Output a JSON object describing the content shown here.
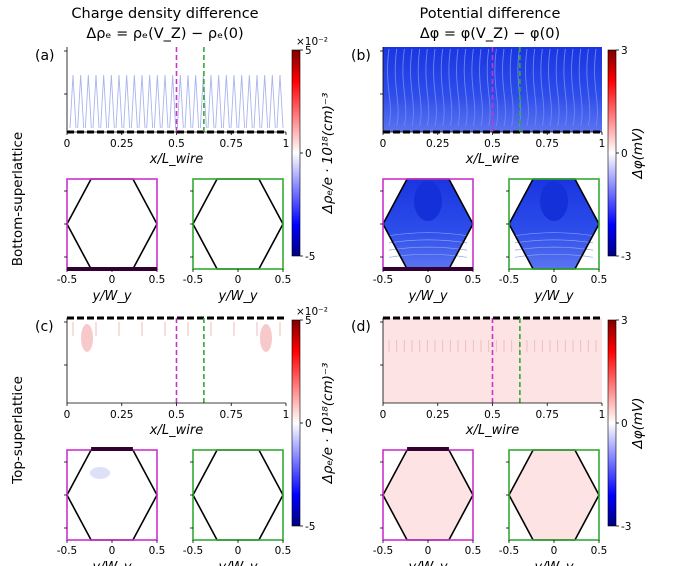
{
  "columns": [
    {
      "title1": "Charge density difference",
      "title2": "Δρₑ = ρₑ(V_Z) − ρₑ(0)"
    },
    {
      "title1": "Potential difference",
      "title2": "Δφ = φ(V_Z) − φ(0)"
    }
  ],
  "rows": [
    "Bottom-superlattice",
    "Top-superlattice"
  ],
  "panels": [
    {
      "label": "(a)",
      "row": 0,
      "col": 0,
      "superlattice": "bottom",
      "field": "charge",
      "mid_fill": "#ffffff",
      "hex_fill": [
        "#ffffff",
        "#ffffff"
      ],
      "blob": false
    },
    {
      "label": "(b)",
      "row": 0,
      "col": 1,
      "superlattice": "bottom",
      "field": "potential",
      "mid_fill": "#2646e6",
      "hex_fill": [
        "#2a4bea",
        "#2a4bea"
      ],
      "blob": true
    },
    {
      "label": "(c)",
      "row": 1,
      "col": 0,
      "superlattice": "top",
      "field": "charge",
      "mid_fill": "#ffffff",
      "hex_fill": [
        "#ffffff",
        "#ffffff"
      ],
      "blob": true
    },
    {
      "label": "(d)",
      "row": 1,
      "col": 1,
      "superlattice": "top",
      "field": "potential",
      "mid_fill": "#fde3e3",
      "hex_fill": [
        "#fde3e3",
        "#fde3e3"
      ],
      "blob": false
    }
  ],
  "chart_data": {
    "type": "heatmap",
    "wire_axis": {
      "label": "x/L_wire",
      "ticks": [
        0,
        0.25,
        0.5,
        0.75,
        1
      ],
      "tick_labels": [
        "0",
        "0.25",
        "0.5",
        "0.75",
        "1"
      ]
    },
    "cross_section_axis": {
      "label": "y/W_y",
      "ticks": [
        -0.5,
        0,
        0.5
      ],
      "tick_labels": [
        "-0.5",
        "0",
        "0.5"
      ]
    },
    "cut_positions": [
      {
        "x": 0.5,
        "color": "#cc33cc"
      },
      {
        "x": 0.625,
        "color": "#33aa33"
      }
    ],
    "colorbars": {
      "charge": {
        "label": "Δρₑ/e · 10¹⁸(cm)⁻³",
        "multiplier": "×10⁻²",
        "min": -5,
        "max": 5,
        "tick_values": [
          5,
          0,
          -5
        ],
        "tick_labels": [
          "5",
          "0",
          "-5"
        ]
      },
      "potential": {
        "label": "Δφ(mV)",
        "min": -3,
        "max": 3,
        "tick_values": [
          3,
          0,
          -3
        ],
        "tick_labels": [
          "3",
          "0",
          "-3"
        ]
      }
    },
    "colormap": [
      "#00007f",
      "#0000ff",
      "#ffffff",
      "#ff0000",
      "#7f0000"
    ]
  }
}
